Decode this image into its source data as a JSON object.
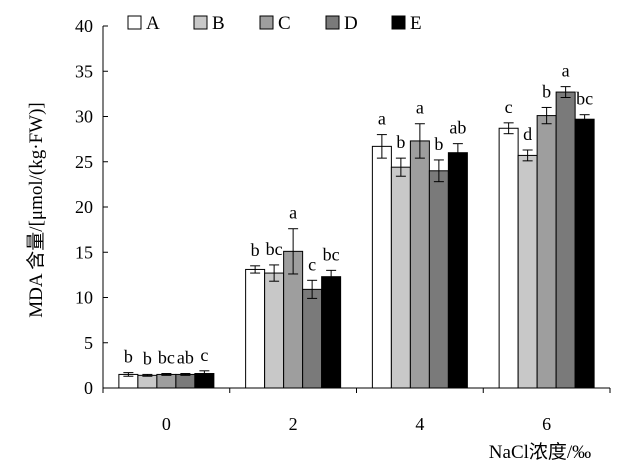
{
  "chart_data": {
    "type": "bar",
    "ylabel": "MDA 含量/[μmol/(kg·FW)]",
    "xlabel": "NaCl浓度/‰",
    "ylim": [
      0,
      40
    ],
    "yticks": [
      "0",
      "5",
      "10",
      "15",
      "20",
      "25",
      "30",
      "35",
      "40"
    ],
    "categories": [
      "0",
      "2",
      "4",
      "6"
    ],
    "legend_position": "top-left",
    "grid": false,
    "series": [
      {
        "name": "A",
        "color": "#ffffff",
        "values": [
          1.5,
          13.1,
          26.7,
          28.7
        ],
        "errors": [
          0.2,
          0.4,
          1.3,
          0.6
        ],
        "labels": [
          "b",
          "b",
          "a",
          "c"
        ]
      },
      {
        "name": "B",
        "color": "#c8c8c8",
        "values": [
          1.4,
          12.7,
          24.4,
          25.7
        ],
        "errors": [
          0.1,
          0.9,
          1.0,
          0.6
        ],
        "labels": [
          "b",
          "bc",
          "b",
          "d"
        ]
      },
      {
        "name": "C",
        "color": "#9e9e9e",
        "values": [
          1.5,
          15.1,
          27.3,
          30.1
        ],
        "errors": [
          0.1,
          2.5,
          1.9,
          0.9
        ],
        "labels": [
          "bc",
          "a",
          "a",
          "b"
        ]
      },
      {
        "name": "D",
        "color": "#7a7a7a",
        "values": [
          1.5,
          10.9,
          24.0,
          32.7
        ],
        "errors": [
          0.1,
          1.0,
          1.2,
          0.6
        ],
        "labels": [
          "ab",
          "c",
          "b",
          "a"
        ]
      },
      {
        "name": "E",
        "color": "#000000",
        "values": [
          1.6,
          12.3,
          26.0,
          29.7
        ],
        "errors": [
          0.3,
          0.7,
          1.0,
          0.5
        ],
        "labels": [
          "c",
          "bc",
          "ab",
          "bc"
        ]
      }
    ]
  }
}
